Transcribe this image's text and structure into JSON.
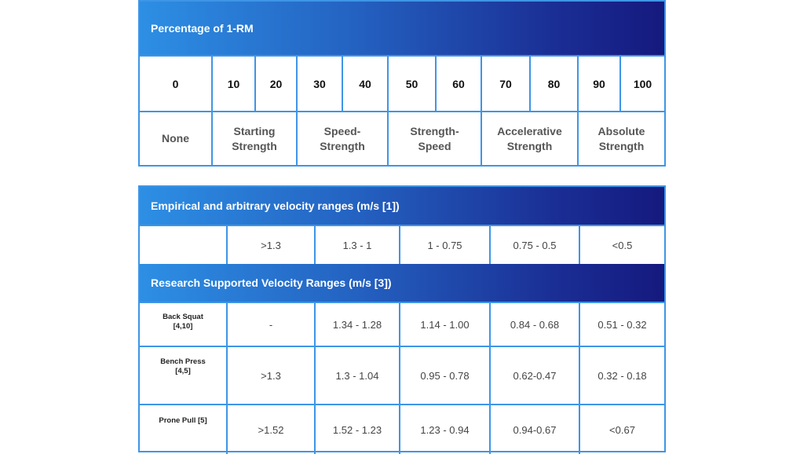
{
  "table1": {
    "header": "Percentage of 1-RM",
    "percentages": [
      "0",
      "10",
      "20",
      "30",
      "40",
      "50",
      "60",
      "70",
      "80",
      "90",
      "100"
    ],
    "zones": [
      {
        "line1": "None",
        "line2": ""
      },
      {
        "line1": "Starting",
        "line2": "Strength"
      },
      {
        "line1": "Speed-",
        "line2": "Strength"
      },
      {
        "line1": "Strength-",
        "line2": "Speed"
      },
      {
        "line1": "Accelerative",
        "line2": "Strength"
      },
      {
        "line1": "Absolute",
        "line2": "Strength"
      }
    ]
  },
  "table2": {
    "header_empirical": "Empirical and arbitrary velocity ranges (m/s [1])",
    "empirical_values": [
      "",
      ">1.3",
      "1.3 - 1",
      "1 - 0.75",
      "0.75 - 0.5",
      "<0.5"
    ],
    "header_research": "Research Supported Velocity Ranges (m/s [3])",
    "rows": [
      {
        "exercise_line1": "Back Squat",
        "exercise_line2": "[4,10]",
        "values": [
          "-",
          "1.34 - 1.28",
          "1.14 - 1.00",
          "0.84 - 0.68",
          "0.51 - 0.32"
        ]
      },
      {
        "exercise_line1": "Bench Press",
        "exercise_line2": "[4,5]",
        "values": [
          ">1.3",
          "1.3 - 1.04",
          "0.95 - 0.78",
          "0.62-0.47",
          "0.32 - 0.18"
        ]
      },
      {
        "exercise_line1": "Prone Pull [5]",
        "exercise_line2": "",
        "values": [
          ">1.52",
          "1.52 - 1.23",
          "1.23 - 0.94",
          "0.94-0.67",
          "<0.67"
        ]
      }
    ]
  },
  "colors": {
    "border": "#3e95e6",
    "header_gradient_start": "#2d8fe4",
    "header_gradient_end": "#15197e",
    "header_text": "#ffffff"
  }
}
